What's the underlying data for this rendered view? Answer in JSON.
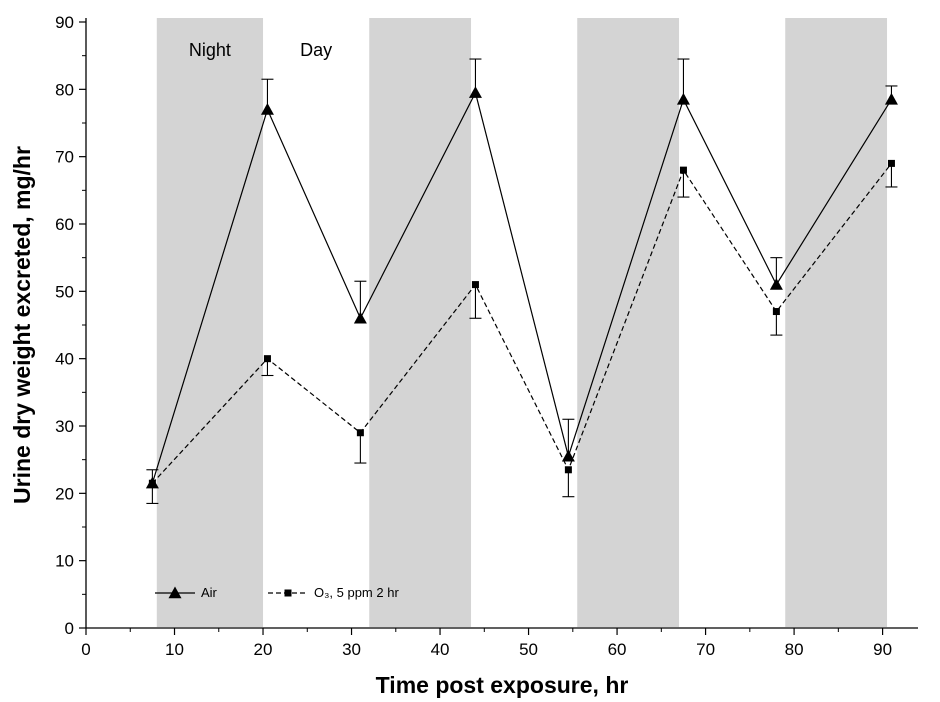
{
  "chart_data": {
    "type": "line",
    "xlabel": "Time post exposure, hr",
    "ylabel": "Urine dry weight excreted, mg/hr",
    "xlim": [
      0,
      94
    ],
    "ylim": [
      0,
      90
    ],
    "xticks": [
      0,
      10,
      20,
      30,
      40,
      50,
      60,
      70,
      80,
      90
    ],
    "yticks": [
      0,
      10,
      20,
      30,
      40,
      50,
      60,
      70,
      80,
      90
    ],
    "grid": false,
    "legend_position": "bottom-left",
    "night_bands": [
      [
        8,
        20
      ],
      [
        32,
        43.5
      ],
      [
        55.5,
        67
      ],
      [
        79,
        90.5
      ]
    ],
    "band_color": "#d4d4d4",
    "band_labels": [
      {
        "text": "Night",
        "x": 14
      },
      {
        "text": "Day",
        "x": 26
      }
    ],
    "series": [
      {
        "name": "Air",
        "marker": "triangle",
        "dash": "solid",
        "x": [
          7.5,
          20.5,
          31,
          44,
          54.5,
          67.5,
          78,
          91
        ],
        "y": [
          21.5,
          77,
          46,
          79.5,
          25.5,
          78.5,
          51,
          78.5
        ],
        "err_upper": [
          23.5,
          81.5,
          51.5,
          84.5,
          31,
          84.5,
          55,
          80.5
        ],
        "err_lower": [
          null,
          null,
          null,
          null,
          null,
          null,
          null,
          null
        ]
      },
      {
        "name": "O₃, 5 ppm 2 hr",
        "marker": "square",
        "dash": "dashed",
        "x": [
          7.5,
          20.5,
          31,
          44,
          54.5,
          67.5,
          78,
          91
        ],
        "y": [
          21.5,
          40,
          29,
          51,
          23.5,
          68,
          47,
          69
        ],
        "err_upper": [
          null,
          null,
          null,
          null,
          null,
          null,
          null,
          null
        ],
        "err_lower": [
          18.5,
          37.5,
          24.5,
          46,
          19.5,
          64,
          43.5,
          65.5
        ]
      }
    ]
  }
}
